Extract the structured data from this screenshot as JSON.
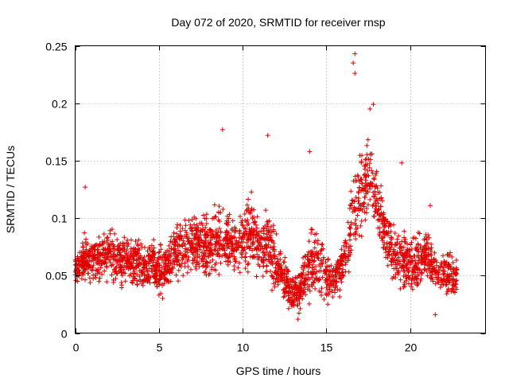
{
  "chart_data": {
    "type": "scatter",
    "title": "Day 072 of 2020, SRMTID for receiver rnsp",
    "xlabel": "GPS time / hours",
    "ylabel": "SRMTID / TECUs",
    "xlim": [
      0,
      24.5
    ],
    "ylim": [
      0,
      0.25
    ],
    "xticks": [
      0,
      5,
      10,
      15,
      20
    ],
    "xtick_labels": [
      "0",
      "5",
      "10",
      "15",
      "20"
    ],
    "yticks": [
      0,
      0.05,
      0.1,
      0.15,
      0.2,
      0.25
    ],
    "ytick_labels": [
      "0",
      "0.05",
      "0.1",
      "0.15",
      "0.2",
      "0.25"
    ],
    "grid": true,
    "marker": "+",
    "color": "#e00000",
    "series": [
      {
        "name": "SRMTID",
        "envelope": {
          "x": [
            0,
            0.5,
            1,
            1.5,
            2,
            2.5,
            3,
            3.5,
            4,
            4.5,
            5,
            5.5,
            6,
            6.5,
            7,
            7.5,
            8,
            8.5,
            9,
            9.5,
            10,
            10.5,
            11,
            11.5,
            12,
            12.5,
            13,
            13.5,
            14,
            14.5,
            15,
            15.5,
            16,
            16.5,
            17,
            17.5,
            18,
            18.5,
            19,
            19.5,
            20,
            20.5,
            21,
            21.5,
            22,
            22.5,
            22.8
          ],
          "center": [
            0.055,
            0.065,
            0.062,
            0.065,
            0.068,
            0.065,
            0.065,
            0.06,
            0.058,
            0.06,
            0.055,
            0.06,
            0.07,
            0.075,
            0.078,
            0.08,
            0.07,
            0.085,
            0.08,
            0.075,
            0.08,
            0.09,
            0.07,
            0.075,
            0.06,
            0.045,
            0.035,
            0.04,
            0.06,
            0.06,
            0.05,
            0.045,
            0.06,
            0.09,
            0.12,
            0.14,
            0.12,
            0.09,
            0.07,
            0.065,
            0.06,
            0.06,
            0.07,
            0.055,
            0.05,
            0.05,
            0.05
          ],
          "spread": [
            0.012,
            0.02,
            0.02,
            0.022,
            0.022,
            0.022,
            0.02,
            0.02,
            0.022,
            0.02,
            0.02,
            0.022,
            0.022,
            0.025,
            0.022,
            0.025,
            0.025,
            0.03,
            0.022,
            0.022,
            0.028,
            0.03,
            0.022,
            0.03,
            0.022,
            0.02,
            0.015,
            0.018,
            0.028,
            0.025,
            0.02,
            0.02,
            0.022,
            0.03,
            0.04,
            0.035,
            0.03,
            0.025,
            0.025,
            0.022,
            0.022,
            0.022,
            0.022,
            0.02,
            0.015,
            0.018,
            0.015
          ]
        },
        "notable_points": [
          {
            "x": 16.7,
            "y": 0.243
          },
          {
            "x": 16.6,
            "y": 0.235
          },
          {
            "x": 16.7,
            "y": 0.226
          },
          {
            "x": 17.8,
            "y": 0.199
          },
          {
            "x": 17.6,
            "y": 0.195
          },
          {
            "x": 8.8,
            "y": 0.177
          },
          {
            "x": 11.5,
            "y": 0.172
          },
          {
            "x": 14.0,
            "y": 0.158
          },
          {
            "x": 19.5,
            "y": 0.148
          },
          {
            "x": 0.6,
            "y": 0.127
          },
          {
            "x": 21.2,
            "y": 0.111
          },
          {
            "x": 21.5,
            "y": 0.016
          },
          {
            "x": 13.3,
            "y": 0.012
          }
        ],
        "point_count": 2600
      }
    ]
  }
}
